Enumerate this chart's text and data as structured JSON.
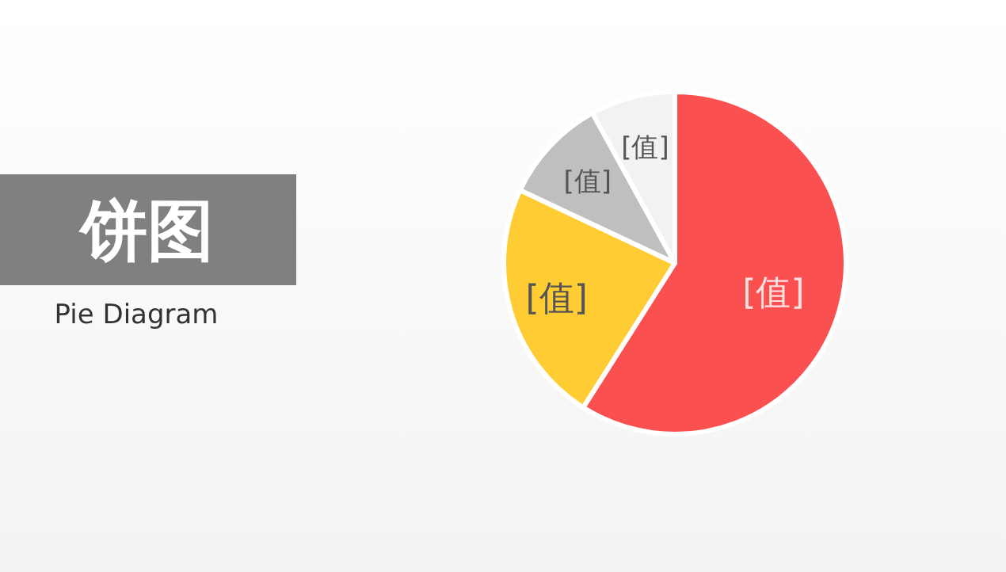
{
  "chart_data": {
    "type": "pie",
    "title": "饼图",
    "subtitle": "Pie Diagram",
    "categories": [
      null,
      null,
      null,
      null
    ],
    "values": [
      59,
      23,
      10,
      8
    ],
    "colors": [
      "#fb5050",
      "#ffcd33",
      "#bfbfbf",
      "#f2f2f2"
    ],
    "value_labels": [
      "[值]",
      "[值]",
      "[值]",
      "[值]"
    ]
  }
}
